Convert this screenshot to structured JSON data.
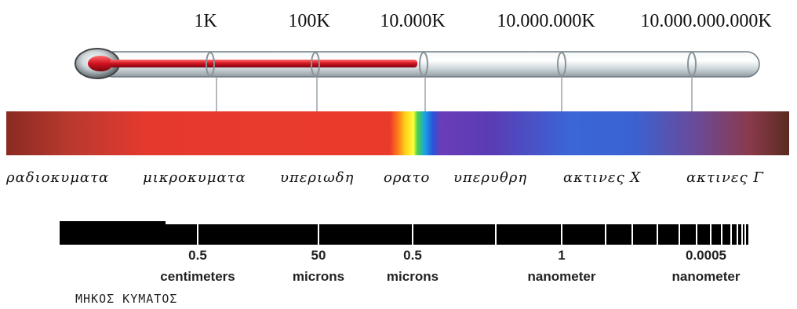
{
  "temperatures": [
    "1K",
    "100K",
    "10.000K",
    "10.000.000K",
    "10.000.000.000K"
  ],
  "bands": [
    "ραδιοκυματα",
    "μικροκυματα",
    "υπεριωδη",
    "ορατο",
    "υπερυθρη",
    "ακτινες Χ",
    "ακτινες Γ"
  ],
  "wavelengths": [
    {
      "value": "0.5",
      "unit": "centimeters"
    },
    {
      "value": "50",
      "unit": "microns"
    },
    {
      "value": "0.5",
      "unit": "microns"
    },
    {
      "value": "1",
      "unit": "nanometer"
    },
    {
      "value": "0.0005",
      "unit": "nanometer"
    }
  ],
  "axis_title": "ΜΗΚΟΣ ΚΥΜΑΤΟΣ",
  "colors": {
    "mercury": "#c8102e",
    "glass": "#dfe6ea",
    "spectrum_red": "#e8362c",
    "spectrum_violet": "#5a3cb4",
    "spectrum_blue": "#3a66d6",
    "bar": "#000000"
  }
}
